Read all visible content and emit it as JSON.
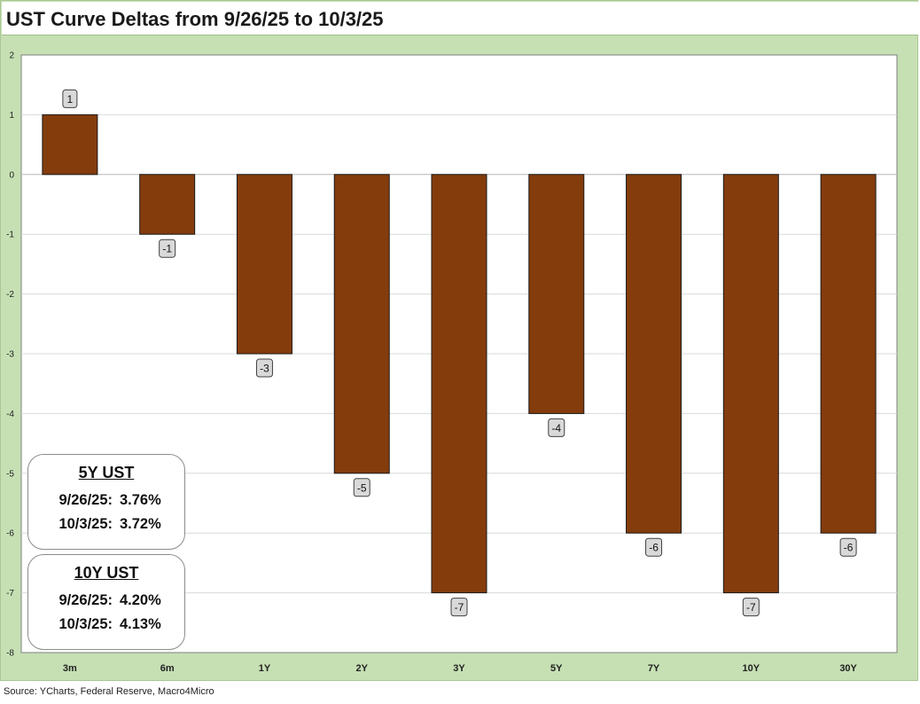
{
  "title": "UST Curve Deltas from 9/26/25 to 10/3/25",
  "source": "Source: YCharts, Federal Reserve, Macro4Micro",
  "colors": {
    "bar": "#843c0c",
    "background": "#c6e0b4",
    "plot": "#ffffff",
    "label_box": "#d9d9d9"
  },
  "info_boxes": [
    {
      "title": "5Y UST",
      "rows": [
        {
          "date": "9/26/25:",
          "value": "3.76%"
        },
        {
          "date": "10/3/25:",
          "value": "3.72%"
        }
      ]
    },
    {
      "title": "10Y UST",
      "rows": [
        {
          "date": "9/26/25:",
          "value": "4.20%"
        },
        {
          "date": "10/3/25:",
          "value": "4.13%"
        }
      ]
    }
  ],
  "chart_data": {
    "type": "bar",
    "title": "UST Curve Deltas from 9/26/25 to 10/3/25",
    "xlabel": "",
    "ylabel": "",
    "categories": [
      "3m",
      "6m",
      "1Y",
      "2Y",
      "3Y",
      "5Y",
      "7Y",
      "10Y",
      "30Y"
    ],
    "values": [
      1,
      -1,
      -3,
      -5,
      -7,
      -4,
      -6,
      -7,
      -6
    ],
    "data_labels": [
      "1",
      "-1",
      "-3",
      "-5",
      "-7",
      "-4",
      "-6",
      "-7",
      "-6"
    ],
    "ylim": [
      -8,
      2
    ],
    "yticks": [
      2,
      1,
      0,
      -1,
      -2,
      -3,
      -4,
      -5,
      -6,
      -7,
      -8
    ],
    "grid": true,
    "legend": "none"
  }
}
